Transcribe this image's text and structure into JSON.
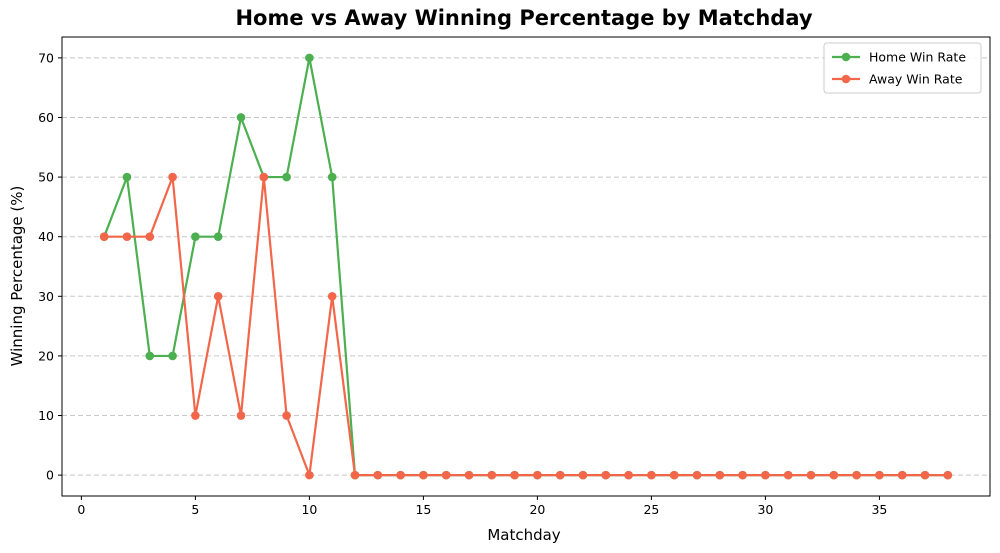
{
  "chart_data": {
    "type": "line",
    "title": "Home vs Away Winning Percentage by Matchday",
    "xlabel": "Matchday",
    "ylabel": "Winning Percentage (%)",
    "xlim": [
      -0.85,
      39.85
    ],
    "ylim": [
      -3.5,
      73.5
    ],
    "xticks": [
      0,
      5,
      10,
      15,
      20,
      25,
      30,
      35
    ],
    "yticks": [
      0,
      10,
      20,
      30,
      40,
      50,
      60,
      70
    ],
    "grid": "y-dashed",
    "legend_position": "top-right",
    "x": [
      1,
      2,
      3,
      4,
      5,
      6,
      7,
      8,
      9,
      10,
      11,
      12,
      13,
      14,
      15,
      16,
      17,
      18,
      19,
      20,
      21,
      22,
      23,
      24,
      25,
      26,
      27,
      28,
      29,
      30,
      31,
      32,
      33,
      34,
      35,
      36,
      37,
      38
    ],
    "series": [
      {
        "name": "Home Win Rate",
        "color": "#4caf50",
        "marker": "circle",
        "values": [
          40,
          50,
          20,
          20,
          40,
          40,
          60,
          50,
          50,
          70,
          50,
          0,
          0,
          0,
          0,
          0,
          0,
          0,
          0,
          0,
          0,
          0,
          0,
          0,
          0,
          0,
          0,
          0,
          0,
          0,
          0,
          0,
          0,
          0,
          0,
          0,
          0,
          0
        ]
      },
      {
        "name": "Away Win Rate",
        "color": "#f2674a",
        "marker": "circle",
        "values": [
          40,
          40,
          40,
          50,
          10,
          30,
          10,
          50,
          10,
          0,
          30,
          0,
          0,
          0,
          0,
          0,
          0,
          0,
          0,
          0,
          0,
          0,
          0,
          0,
          0,
          0,
          0,
          0,
          0,
          0,
          0,
          0,
          0,
          0,
          0,
          0,
          0,
          0
        ]
      }
    ]
  }
}
